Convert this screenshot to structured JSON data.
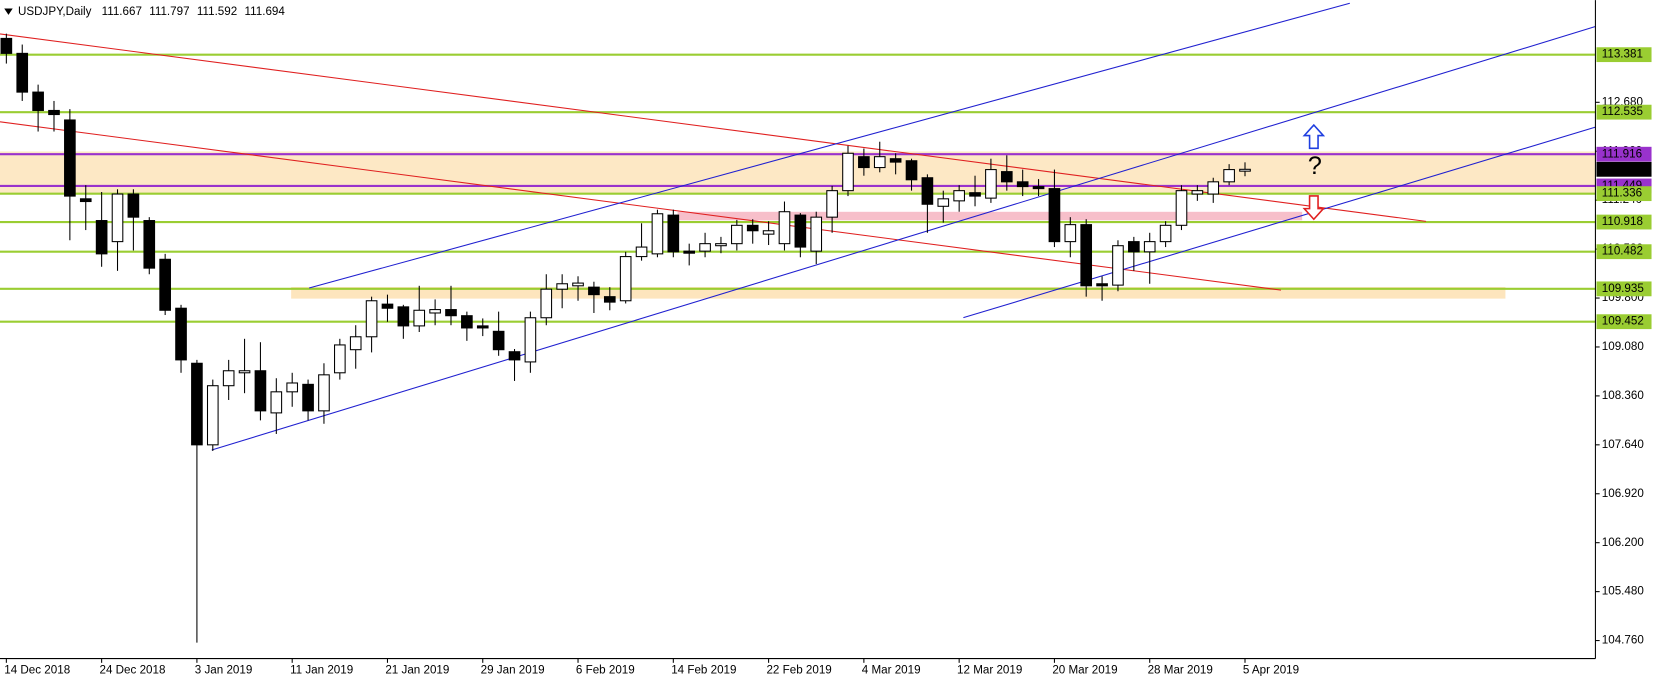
{
  "chart_data": {
    "type": "candlestick",
    "title": "USDJPY,Daily",
    "annotation": "?",
    "categories": [
      "14 Dec 2018",
      null,
      null,
      null,
      null,
      null,
      "24 Dec 2018",
      null,
      null,
      null,
      null,
      null,
      "3 Jan 2019",
      null,
      null,
      null,
      null,
      null,
      "11 Jan 2019",
      null,
      null,
      null,
      null,
      null,
      "21 Jan 2019",
      null,
      null,
      null,
      null,
      null,
      "29 Jan 2019",
      null,
      null,
      null,
      null,
      null,
      "6 Feb 2019",
      null,
      null,
      null,
      null,
      null,
      "14 Feb 2019",
      null,
      null,
      null,
      null,
      null,
      "22 Feb 2019",
      null,
      null,
      null,
      null,
      null,
      "4 Mar 2019",
      null,
      null,
      null,
      null,
      null,
      "12 Mar 2019",
      null,
      null,
      null,
      null,
      null,
      "20 Mar 2019",
      null,
      null,
      null,
      null,
      null,
      "28 Mar 2019",
      null,
      null,
      null,
      null,
      null,
      "5 Apr 2019"
    ],
    "open": [
      113.62,
      113.4,
      112.83,
      112.56,
      112.42,
      111.26,
      110.94,
      110.63,
      111.33,
      110.94,
      110.37,
      109.65,
      108.84,
      107.64,
      108.51,
      108.7,
      108.73,
      108.11,
      108.42,
      108.53,
      108.14,
      108.7,
      109.04,
      109.23,
      109.71,
      109.67,
      109.39,
      109.58,
      109.63,
      109.54,
      109.39,
      109.31,
      109.01,
      108.86,
      109.51,
      109.93,
      109.98,
      109.96,
      109.82,
      109.76,
      110.41,
      110.45,
      111.02,
      110.49,
      110.49,
      110.57,
      110.6,
      110.87,
      110.74,
      110.6,
      111.02,
      110.49,
      110.99,
      111.38,
      111.88,
      111.72,
      111.85,
      111.82,
      111.57,
      111.15,
      111.23,
      111.35,
      111.27,
      111.66,
      111.51,
      111.44,
      111.41,
      110.63,
      110.88,
      110.01,
      109.99,
      110.63,
      110.48,
      110.63,
      110.87,
      111.33,
      111.33,
      111.51,
      111.667
    ],
    "high": [
      113.69,
      113.53,
      112.94,
      112.7,
      112.58,
      111.46,
      111.36,
      111.4,
      111.4,
      110.99,
      110.45,
      109.7,
      108.89,
      108.6,
      108.89,
      109.2,
      109.15,
      108.62,
      108.7,
      108.6,
      108.84,
      109.2,
      109.4,
      109.82,
      109.85,
      109.7,
      109.98,
      109.78,
      109.98,
      109.6,
      109.5,
      109.6,
      109.05,
      109.6,
      110.15,
      110.15,
      110.12,
      110.04,
      109.96,
      110.48,
      110.9,
      111.1,
      111.1,
      110.6,
      110.76,
      110.7,
      110.95,
      110.96,
      110.93,
      111.22,
      111.05,
      111.07,
      111.45,
      112.04,
      112.0,
      112.1,
      111.93,
      111.85,
      111.62,
      111.38,
      111.46,
      111.6,
      111.85,
      111.9,
      111.69,
      111.55,
      111.69,
      110.99,
      110.96,
      110.12,
      110.65,
      110.7,
      110.76,
      110.93,
      111.46,
      111.46,
      111.57,
      111.77,
      111.797
    ],
    "low": [
      113.25,
      112.7,
      112.25,
      112.25,
      110.65,
      110.8,
      110.26,
      110.2,
      110.5,
      110.15,
      109.55,
      108.7,
      104.73,
      107.55,
      108.3,
      108.4,
      108.0,
      107.8,
      108.2,
      108.0,
      107.95,
      108.6,
      108.76,
      109.0,
      109.45,
      109.2,
      109.3,
      109.4,
      109.4,
      109.17,
      109.24,
      108.95,
      108.58,
      108.7,
      109.4,
      109.65,
      109.76,
      109.58,
      109.62,
      109.72,
      110.35,
      110.4,
      110.4,
      110.28,
      110.4,
      110.46,
      110.5,
      110.6,
      110.58,
      110.5,
      110.4,
      110.3,
      110.76,
      111.3,
      111.6,
      111.65,
      111.62,
      111.38,
      110.76,
      110.91,
      111.07,
      111.15,
      111.2,
      111.38,
      111.3,
      111.3,
      110.55,
      110.4,
      109.82,
      109.76,
      109.9,
      110.2,
      110.01,
      110.55,
      110.8,
      111.23,
      111.2,
      111.46,
      111.592
    ],
    "close": [
      113.4,
      112.83,
      112.56,
      112.5,
      111.3,
      111.22,
      110.45,
      111.33,
      110.99,
      110.24,
      109.62,
      108.89,
      107.64,
      108.51,
      108.73,
      108.73,
      108.14,
      108.42,
      108.55,
      108.14,
      108.67,
      109.11,
      109.23,
      109.76,
      109.65,
      109.39,
      109.62,
      109.63,
      109.54,
      109.36,
      109.36,
      109.04,
      108.89,
      109.51,
      109.93,
      110.01,
      110.02,
      109.85,
      109.74,
      110.41,
      110.55,
      111.04,
      110.48,
      110.46,
      110.6,
      110.6,
      110.87,
      110.79,
      110.79,
      111.07,
      110.55,
      110.99,
      111.38,
      111.93,
      111.72,
      111.88,
      111.8,
      111.54,
      111.18,
      111.26,
      111.38,
      111.3,
      111.69,
      111.51,
      111.44,
      111.41,
      110.63,
      110.88,
      109.98,
      109.98,
      110.57,
      110.48,
      110.63,
      110.87,
      111.38,
      111.38,
      111.51,
      111.69,
      111.694
    ],
    "up_color": "#ffffff",
    "down_color": "#000000",
    "ylim": [
      104.495,
      114.153
    ],
    "yticks": [
      {
        "value": 104.76,
        "label": "104.760"
      },
      {
        "value": 105.48,
        "label": "105.480"
      },
      {
        "value": 106.2,
        "label": "106.200"
      },
      {
        "value": 106.92,
        "label": "106.920"
      },
      {
        "value": 107.64,
        "label": "107.640"
      },
      {
        "value": 108.36,
        "label": "108.360"
      },
      {
        "value": 109.08,
        "label": "109.080"
      },
      {
        "value": 109.8,
        "label": "109.800"
      },
      {
        "value": 110.52,
        "label": "110.520"
      },
      {
        "value": 111.24,
        "label": "111.240"
      },
      {
        "value": 111.96,
        "label": "111.960"
      },
      {
        "value": 112.68,
        "label": "112.680"
      }
    ],
    "levels": [
      {
        "value": 113.381,
        "color": "#9acd32"
      },
      {
        "value": 112.535,
        "color": "#9acd32"
      },
      {
        "value": 111.916,
        "color": "#9932cc"
      },
      {
        "value": 111.449,
        "color": "#9932cc"
      },
      {
        "value": 111.336,
        "color": "#9acd32"
      },
      {
        "value": 110.918,
        "color": "#9acd32"
      },
      {
        "value": 110.482,
        "color": "#9acd32"
      },
      {
        "value": 109.935,
        "color": "#9acd32"
      },
      {
        "value": 109.452,
        "color": "#9acd32"
      }
    ],
    "grid": false
  }
}
